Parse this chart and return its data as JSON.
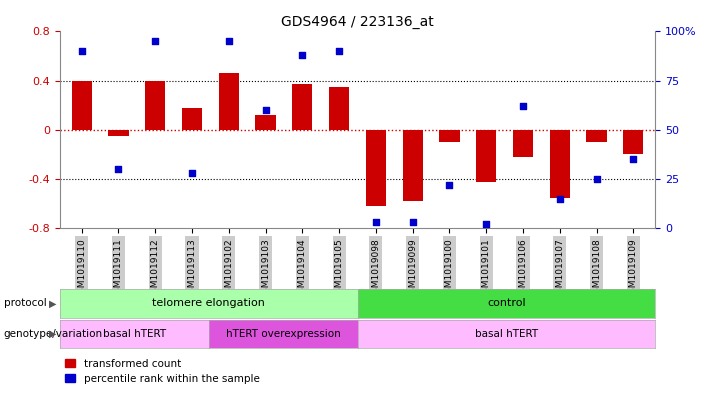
{
  "title": "GDS4964 / 223136_at",
  "samples": [
    "GSM1019110",
    "GSM1019111",
    "GSM1019112",
    "GSM1019113",
    "GSM1019102",
    "GSM1019103",
    "GSM1019104",
    "GSM1019105",
    "GSM1019098",
    "GSM1019099",
    "GSM1019100",
    "GSM1019101",
    "GSM1019106",
    "GSM1019107",
    "GSM1019108",
    "GSM1019109"
  ],
  "bar_values": [
    0.4,
    -0.05,
    0.4,
    0.18,
    0.46,
    0.12,
    0.37,
    0.35,
    -0.62,
    -0.58,
    -0.1,
    -0.42,
    -0.22,
    -0.55,
    -0.1,
    -0.2
  ],
  "dot_percentiles": [
    90,
    30,
    95,
    28,
    95,
    60,
    88,
    90,
    3,
    3,
    22,
    2,
    62,
    15,
    25,
    35
  ],
  "ylim": [
    -0.8,
    0.8
  ],
  "yticks": [
    -0.8,
    -0.4,
    0.0,
    0.4,
    0.8
  ],
  "ytick_labels": [
    "-0.8",
    "-0.4",
    "0",
    "0.4",
    "0.8"
  ],
  "y2ticks": [
    0,
    25,
    50,
    75,
    100
  ],
  "y2tick_labels": [
    "0",
    "25",
    "50",
    "75",
    "100%"
  ],
  "bar_color": "#cc0000",
  "dot_color": "#0000cc",
  "protocol_telomere_label": "telomere elongation",
  "protocol_telomere_color": "#aaffaa",
  "protocol_control_label": "control",
  "protocol_control_color": "#44dd44",
  "genotype_basal1_label": "basal hTERT",
  "genotype_basal1_color": "#ffbbff",
  "genotype_hTERT_label": "hTERT overexpression",
  "genotype_hTERT_color": "#dd55dd",
  "genotype_basal2_label": "basal hTERT",
  "genotype_basal2_color": "#ffbbff",
  "legend_bar_label": "transformed count",
  "legend_dot_label": "percentile rank within the sample",
  "bg_color": "#ffffff",
  "tick_bg_color": "#cccccc",
  "n_telo": 8,
  "n_ctrl": 8,
  "n_basal1": 4,
  "n_hTERT": 4,
  "n_basal2": 8
}
